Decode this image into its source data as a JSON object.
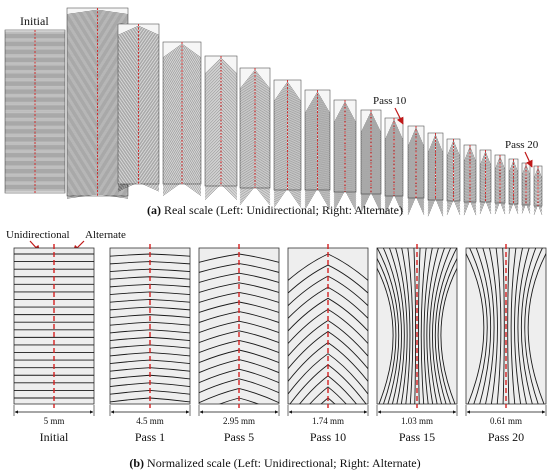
{
  "part_a": {
    "label_initial": "Initial",
    "label_pass10": "Pass 10",
    "label_pass20": "Pass 20",
    "caption_letter": "(a)",
    "caption_text": " Real scale (Left: Unidirectional; Right: Alternate)"
  },
  "part_b": {
    "label_unidirectional": "Unidirectional",
    "label_alternate": "Alternate",
    "caption_letter": "(b)",
    "caption_text": " Normalized scale (Left: Unidirectional; Right: Alternate)",
    "panels": [
      {
        "name": "Initial",
        "dim": "5 mm"
      },
      {
        "name": "Pass 1",
        "dim": "4.5 mm"
      },
      {
        "name": "Pass 5",
        "dim": "2.95 mm"
      },
      {
        "name": "Pass 10",
        "dim": "1.74 mm"
      },
      {
        "name": "Pass 15",
        "dim": "1.03 mm"
      },
      {
        "name": "Pass 20",
        "dim": "0.61 mm"
      }
    ]
  },
  "colors": {
    "line": "#1a1a1a",
    "centerline": "#d42020",
    "arrow": "#c01818",
    "panel_fill": "#eeeeee"
  }
}
